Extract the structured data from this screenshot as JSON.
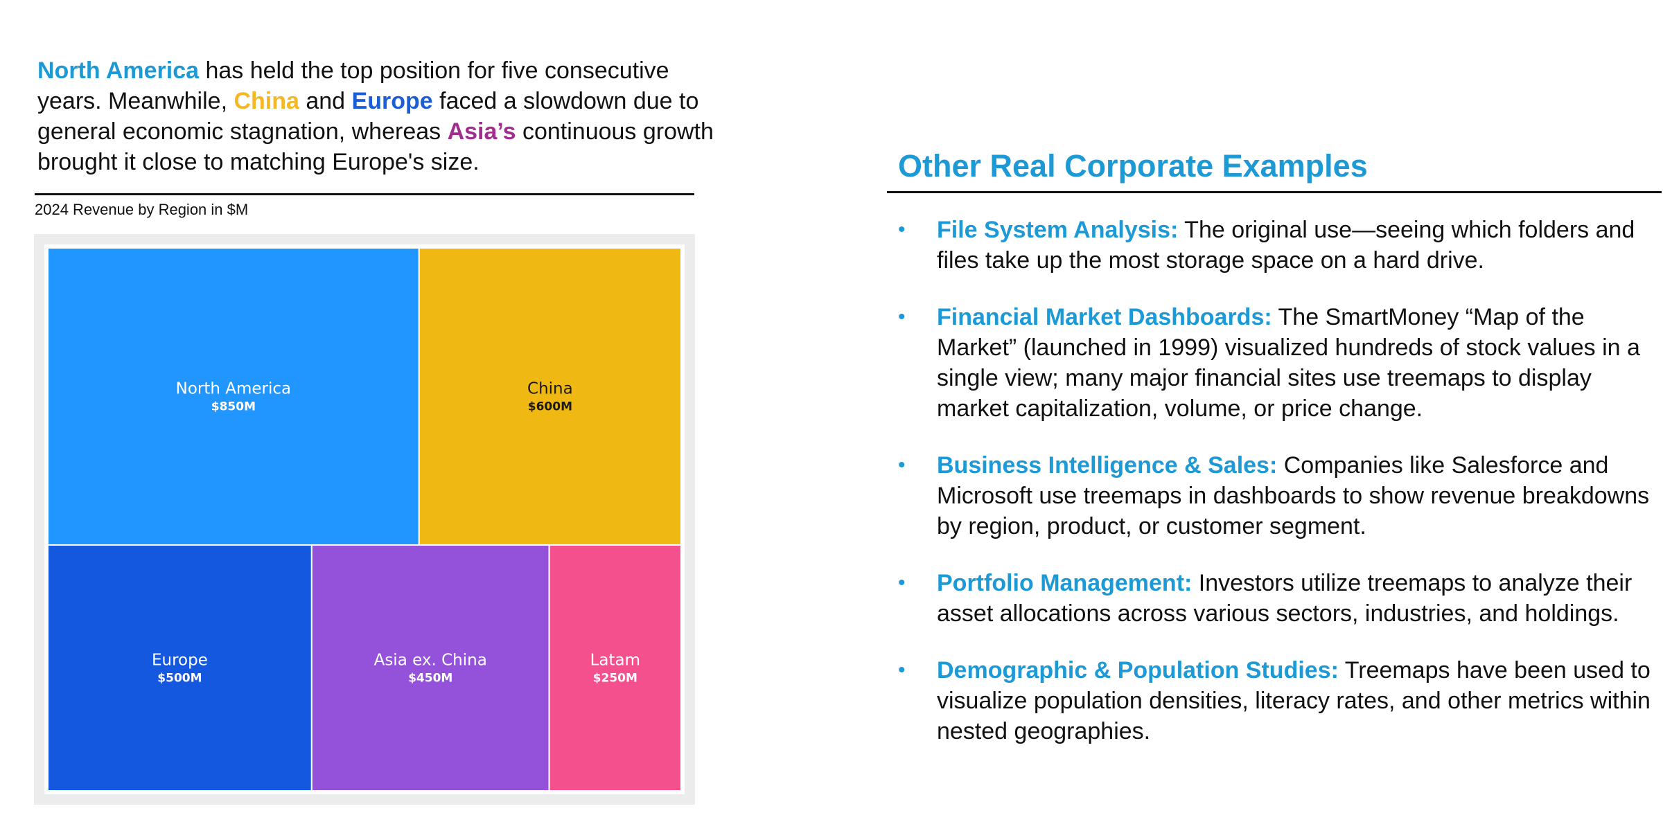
{
  "intro": {
    "parts": [
      {
        "text": "North America",
        "color": "#1d9ad6",
        "bold": true
      },
      {
        "text": " has held the top position for five consecutive years. Meanwhile, ",
        "color": "#111111",
        "bold": false
      },
      {
        "text": "China",
        "color": "#f4b824",
        "bold": true
      },
      {
        "text": " and ",
        "color": "#111111",
        "bold": false
      },
      {
        "text": "Europe",
        "color": "#1b5ed6",
        "bold": true
      },
      {
        "text": " faced a slowdown due to general economic stagnation, whereas ",
        "color": "#111111",
        "bold": false
      },
      {
        "text": "Asia’s",
        "color": "#a12d8f",
        "bold": true
      },
      {
        "text": " continuous growth brought it close to matching Europe's size.",
        "color": "#111111",
        "bold": false
      }
    ]
  },
  "chart_data": {
    "type": "treemap",
    "title": "2024 Revenue by Region in $M",
    "items": [
      {
        "name": "North America",
        "value": 850,
        "label": "$850M",
        "color": "#2196ff",
        "text_color": "#ffffff"
      },
      {
        "name": "China",
        "value": 600,
        "label": "$600M",
        "color": "#f0b813",
        "text_color": "#1a1a1a"
      },
      {
        "name": "Europe",
        "value": 500,
        "label": "$500M",
        "color": "#1558e0",
        "text_color": "#ffffff"
      },
      {
        "name": "Asia ex. China",
        "value": 450,
        "label": "$450M",
        "color": "#9452db",
        "text_color": "#ffffff"
      },
      {
        "name": "Latam",
        "value": 250,
        "label": "$250M",
        "color": "#f4508e",
        "text_color": "#ffffff"
      }
    ]
  },
  "right": {
    "title": "Other Real Corporate Examples",
    "bullet_glyph": "•",
    "items": [
      {
        "head": "File System Analysis:",
        "body": " The original use—seeing which folders and files take up the most storage space on a hard drive."
      },
      {
        "head": "Financial Market Dashboards:",
        "body": " The SmartMoney “Map of the Market” (launched in 1999) visualized hundreds of stock values in a single view; many major financial sites use treemaps to display market capitalization, volume, or price change."
      },
      {
        "head": "Business Intelligence & Sales:",
        "body": " Companies like Salesforce and Microsoft use treemaps in dashboards to show revenue breakdowns by region, product, or customer segment."
      },
      {
        "head": "Portfolio Management:",
        "body": " Investors utilize treemaps to analyze their asset allocations across various sectors, industries, and holdings."
      },
      {
        "head": "Demographic & Population Studies:",
        "body": " Treemaps have been used to visualize population densities, literacy rates, and other metrics within nested geographies."
      }
    ]
  }
}
